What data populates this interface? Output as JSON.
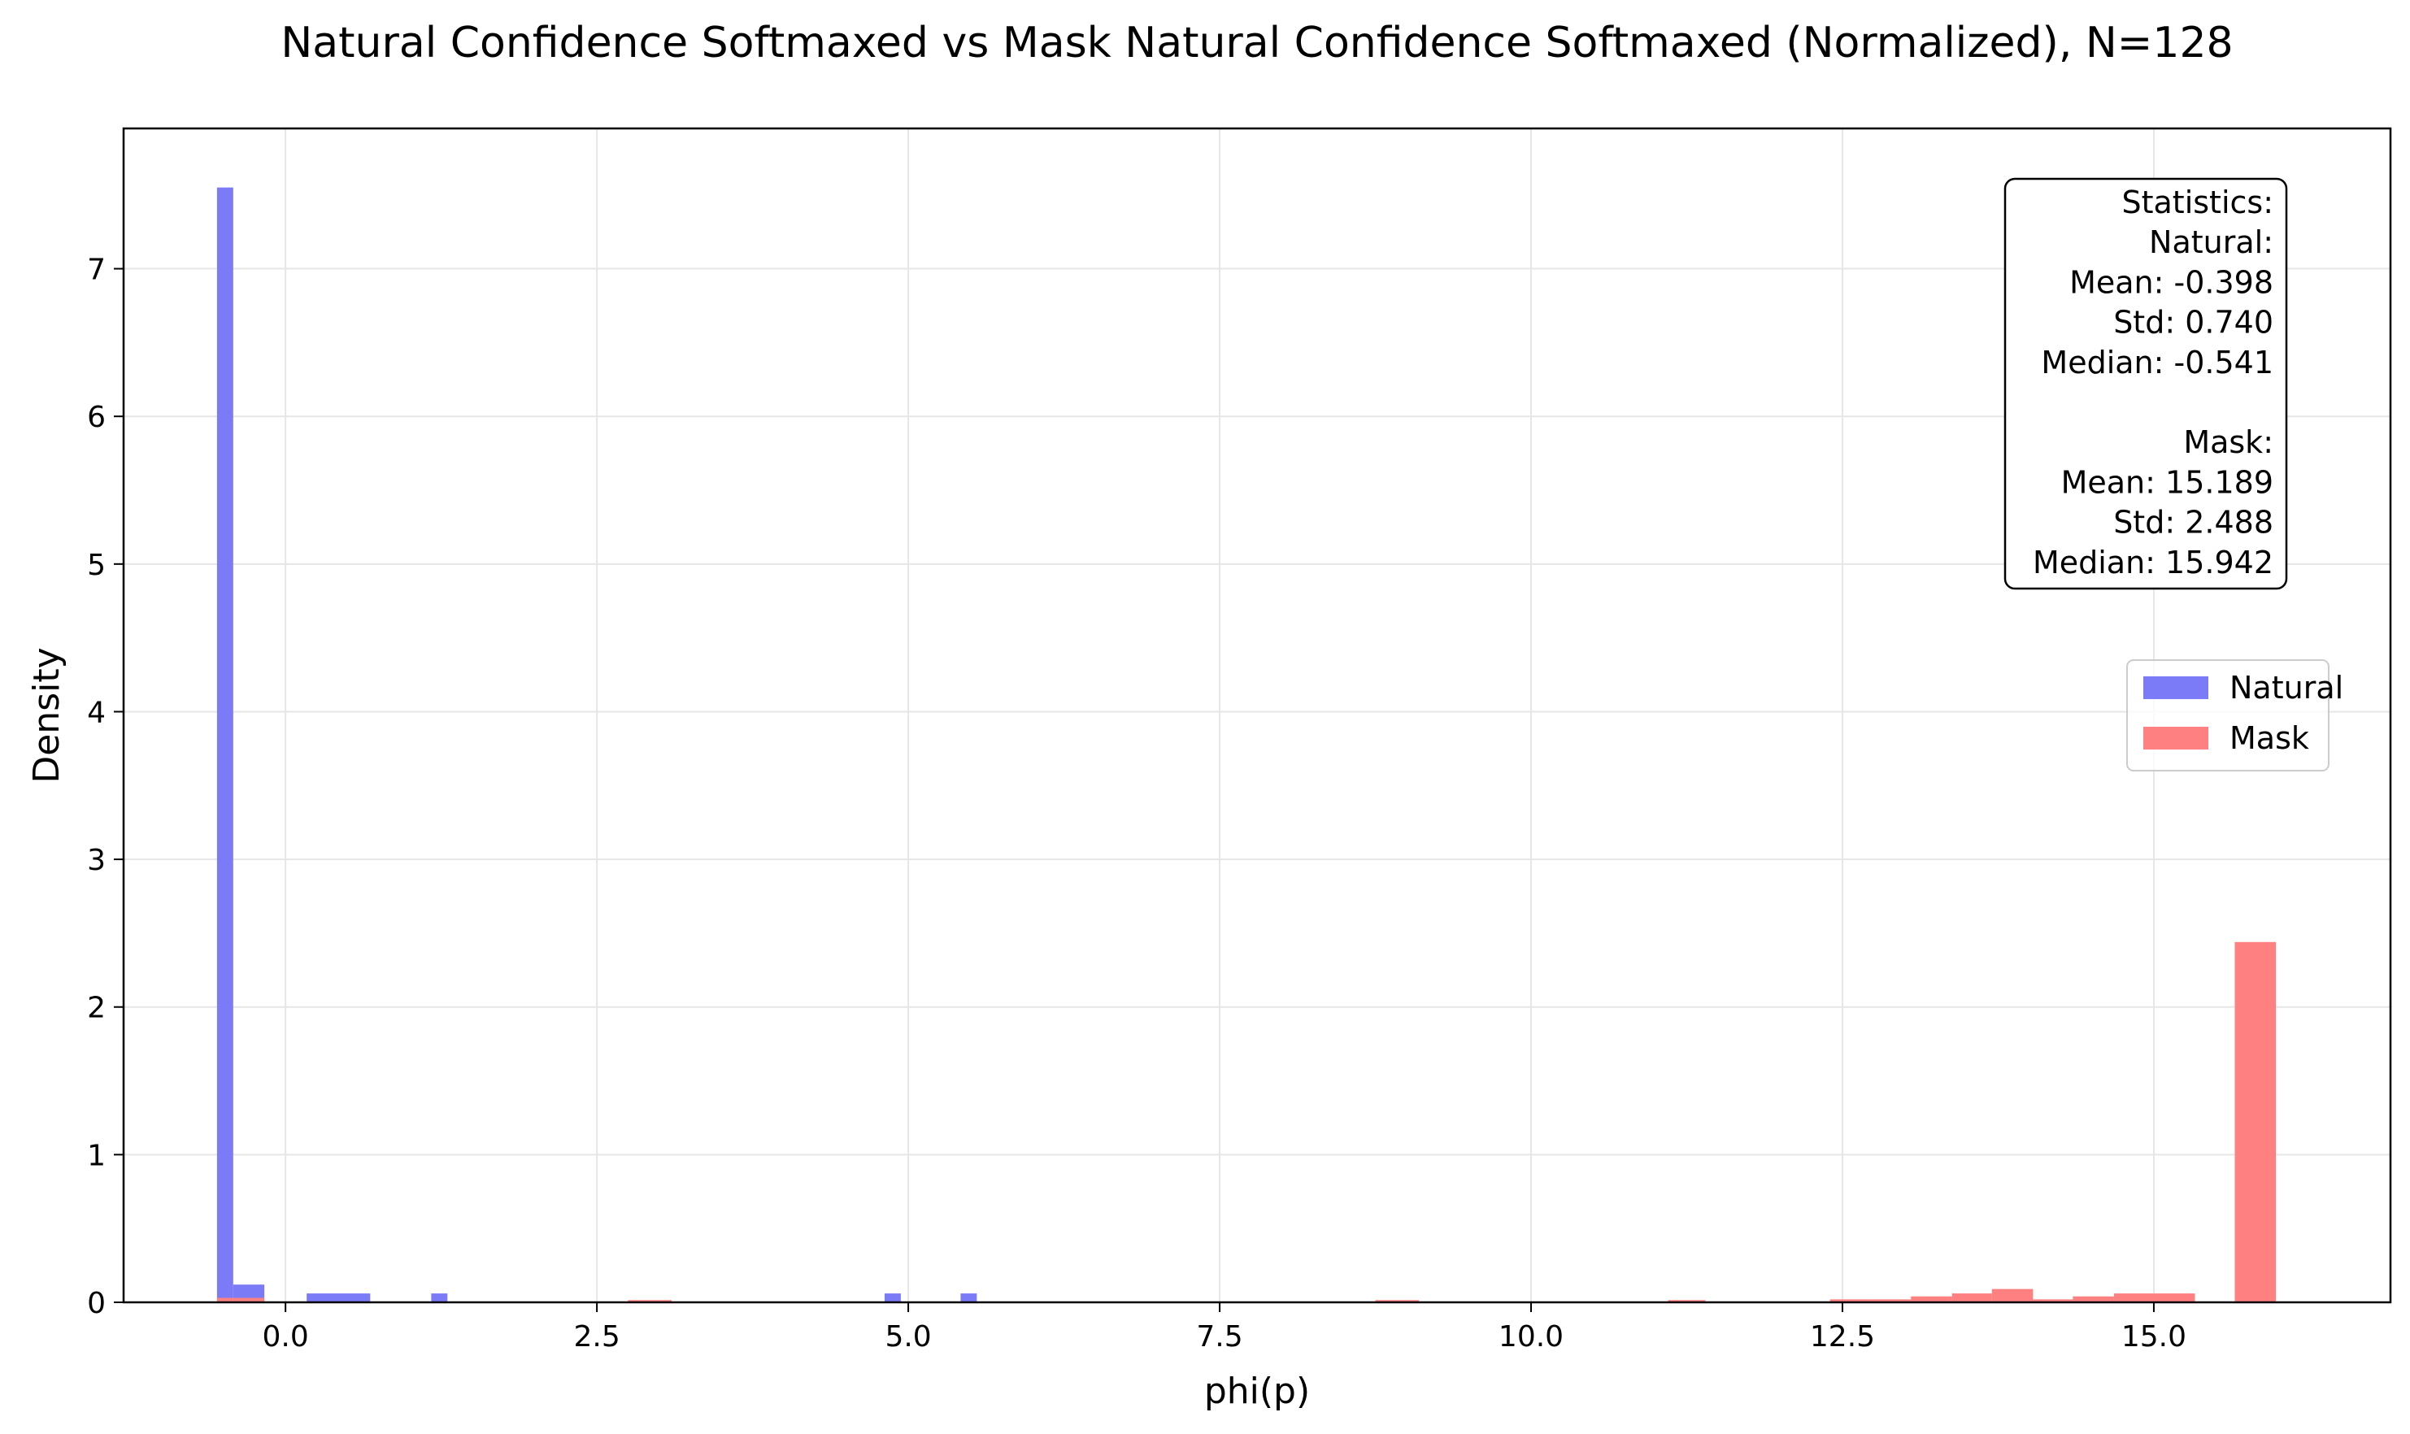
{
  "chart_data": {
    "type": "bar",
    "title": "Natural Confidence Softmaxed vs Mask Natural Confidence Softmaxed (Normalized), N=128",
    "xlabel": "phi(p)",
    "ylabel": "Density",
    "xlim": [
      -1.3,
      16.9
    ],
    "ylim": [
      0,
      7.95
    ],
    "xticks": [
      0.0,
      2.5,
      5.0,
      7.5,
      10.0,
      12.5,
      15.0
    ],
    "xtick_labels": [
      "0.0",
      "2.5",
      "5.0",
      "7.5",
      "10.0",
      "12.5",
      "15.0"
    ],
    "yticks": [
      0,
      1,
      2,
      3,
      4,
      5,
      6,
      7
    ],
    "ytick_labels": [
      "0",
      "1",
      "2",
      "3",
      "4",
      "5",
      "6",
      "7"
    ],
    "grid": true,
    "legend_position": "center-right",
    "series": [
      {
        "name": "Natural",
        "color": "#7b7bf7",
        "bins": [
          {
            "x0": -0.55,
            "x1": -0.42,
            "value": 7.55
          },
          {
            "x0": -0.42,
            "x1": -0.17,
            "value": 0.12
          },
          {
            "x0": 0.17,
            "x1": 0.68,
            "value": 0.06
          },
          {
            "x0": 1.17,
            "x1": 1.3,
            "value": 0.06
          },
          {
            "x0": 4.81,
            "x1": 4.94,
            "value": 0.06
          },
          {
            "x0": 5.42,
            "x1": 5.55,
            "value": 0.06
          }
        ]
      },
      {
        "name": "Mask",
        "color": "#ff8080",
        "bins": [
          {
            "x0": -0.55,
            "x1": -0.17,
            "value": 0.03
          },
          {
            "x0": 2.75,
            "x1": 3.1,
            "value": 0.015
          },
          {
            "x0": 8.75,
            "x1": 9.1,
            "value": 0.015
          },
          {
            "x0": 11.1,
            "x1": 11.4,
            "value": 0.015
          },
          {
            "x0": 12.4,
            "x1": 12.73,
            "value": 0.02
          },
          {
            "x0": 12.73,
            "x1": 13.05,
            "value": 0.02
          },
          {
            "x0": 13.05,
            "x1": 13.38,
            "value": 0.04
          },
          {
            "x0": 13.38,
            "x1": 13.7,
            "value": 0.06
          },
          {
            "x0": 13.7,
            "x1": 14.03,
            "value": 0.09
          },
          {
            "x0": 14.03,
            "x1": 14.35,
            "value": 0.02
          },
          {
            "x0": 14.35,
            "x1": 14.68,
            "value": 0.04
          },
          {
            "x0": 14.68,
            "x1": 15.0,
            "value": 0.06
          },
          {
            "x0": 15.0,
            "x1": 15.33,
            "value": 0.06
          },
          {
            "x0": 15.65,
            "x1": 15.98,
            "value": 2.44
          }
        ]
      }
    ],
    "stats_box": [
      "Statistics:",
      "Natural:",
      "Mean: -0.398",
      "Std: 0.740",
      "Median: -0.541",
      "",
      "Mask:",
      "Mean: 15.189",
      "Std: 2.488",
      "Median: 15.942"
    ]
  }
}
